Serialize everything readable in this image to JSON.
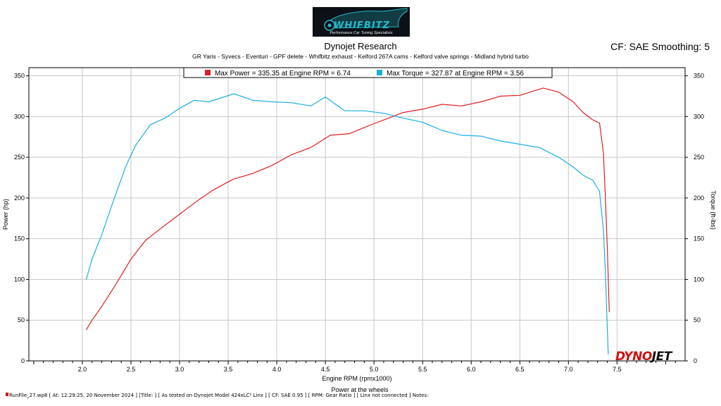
{
  "logo": {
    "word": "WHIFBITZ",
    "tagline": "Performance Car Tuning Specialists"
  },
  "header": {
    "title": "Dynojet Research",
    "subtitle": "GR Yaris - Syvecs - Eventuri - GPF delete - Whifbitz exhaust - Kelford 267A cams - Kelford valve springs - Midland hybrid turbo",
    "cf": "CF: SAE Smoothing: 5"
  },
  "brand": {
    "part1": "DYNO",
    "part2": "JET"
  },
  "footer": {
    "text": "RunFile_27.wp8 [ At: 12:29:25, 20 November 2024 ] [Title: ] [ As tested on Dynojet Model 424xLC² Linx ] [ CF: SAE 0.95 ] [ RPM: Gear Ratio ] [ Linx not connected ] Notes:"
  },
  "chart_data": {
    "type": "line",
    "title": "Dynojet Research",
    "xlabel": "Engine RPM (rpmx1000)",
    "ylabel": "Power (hp)",
    "y2label": "Torque (ft-lbs)",
    "caption": "Power at the wheels",
    "xlim": [
      1.45,
      8.2
    ],
    "ylim": [
      0,
      360
    ],
    "y2lim": [
      0,
      360
    ],
    "xticks": [
      2.0,
      2.5,
      3.0,
      3.5,
      4.0,
      4.5,
      5.0,
      5.5,
      6.0,
      6.5,
      7.0,
      7.5
    ],
    "xtick_labels": [
      "2.0",
      "2.5",
      "3.0",
      "3.5",
      "4.0",
      "4.5",
      "5.0",
      "5.5",
      "6.0",
      "6.5",
      "7.0",
      "7.5"
    ],
    "yticks": [
      0,
      50,
      100,
      150,
      200,
      250,
      300,
      350
    ],
    "ytick_labels": [
      "0",
      "50",
      "100",
      "150",
      "200",
      "250",
      "300",
      "350"
    ],
    "grid": true,
    "legend_placement": "top-center",
    "series": [
      {
        "name": "Power",
        "legend_label": "Max Power = 335.35 at Engine RPM = 6.74",
        "color": "#e01e1e",
        "x": [
          2.04,
          2.1,
          2.2,
          2.35,
          2.5,
          2.65,
          2.8,
          3.0,
          3.2,
          3.35,
          3.55,
          3.75,
          3.95,
          4.15,
          4.35,
          4.55,
          4.75,
          4.95,
          5.15,
          5.3,
          5.5,
          5.7,
          5.9,
          6.1,
          6.3,
          6.5,
          6.74,
          6.9,
          7.05,
          7.15,
          7.25,
          7.32,
          7.36,
          7.38,
          7.4,
          7.42
        ],
        "y": [
          38,
          50,
          67,
          95,
          125,
          148,
          162,
          180,
          198,
          210,
          223,
          230,
          240,
          253,
          262,
          277,
          279,
          289,
          298,
          305,
          309,
          315,
          313,
          318,
          325,
          326,
          335,
          330,
          318,
          305,
          296,
          292,
          255,
          200,
          140,
          60
        ]
      },
      {
        "name": "Torque",
        "legend_label": "Max Torque = 327.87 at Engine RPM = 3.56",
        "color": "#1aaee8",
        "x": [
          2.04,
          2.1,
          2.2,
          2.3,
          2.45,
          2.55,
          2.7,
          2.85,
          3.0,
          3.15,
          3.3,
          3.56,
          3.75,
          3.95,
          4.15,
          4.35,
          4.5,
          4.7,
          4.9,
          5.1,
          5.3,
          5.5,
          5.7,
          5.9,
          6.1,
          6.3,
          6.5,
          6.7,
          6.9,
          7.05,
          7.15,
          7.25,
          7.32,
          7.36,
          7.38,
          7.4,
          7.41
        ],
        "y": [
          100,
          125,
          155,
          190,
          240,
          265,
          290,
          298,
          310,
          320,
          318,
          328,
          320,
          318,
          317,
          313,
          324,
          307,
          307,
          304,
          298,
          293,
          283,
          277,
          276,
          270,
          266,
          262,
          250,
          238,
          228,
          222,
          208,
          160,
          110,
          40,
          8
        ]
      }
    ]
  }
}
